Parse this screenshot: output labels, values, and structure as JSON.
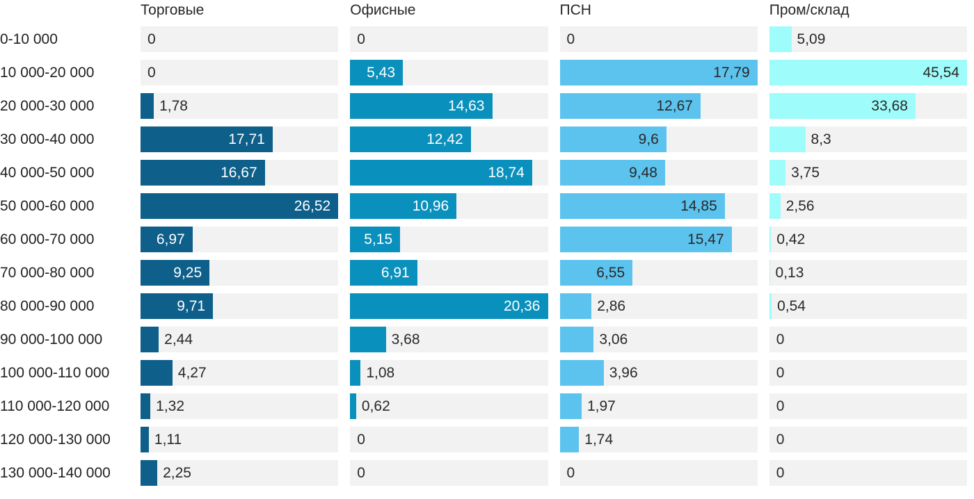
{
  "chart_data": {
    "type": "bar",
    "orientation": "horizontal",
    "title": "",
    "grid": "off",
    "legend_position": "column-headers-top",
    "track_color": "#f2f2f2",
    "background_color": "#ffffff",
    "text_color": "#282828",
    "categories": [
      "0-10 000",
      "10 000-20 000",
      "20 000-30 000",
      "30 000-40 000",
      "40 000-50 000",
      "50 000-60 000",
      "60 000-70 000",
      "70 000-80 000",
      "80 000-90 000",
      "90 000-100 000",
      "100 000-110 000",
      "110 000-120 000",
      "120 000-130 000",
      "130 000-140 000"
    ],
    "scaling_note": "each column scaled independently so its max value fills the track",
    "series": [
      {
        "name": "Торговые",
        "color": "#0e5f8a",
        "text_on_bar": "#ffffff",
        "values": [
          0,
          0,
          1.78,
          17.71,
          16.67,
          26.52,
          6.97,
          9.25,
          9.71,
          2.44,
          4.27,
          1.32,
          1.11,
          2.25
        ],
        "labels": [
          "0",
          "0",
          "1,78",
          "17,71",
          "16,67",
          "26,52",
          "6,97",
          "9,25",
          "9,71",
          "2,44",
          "4,27",
          "1,32",
          "1,11",
          "2,25"
        ]
      },
      {
        "name": "Офисные",
        "color": "#0a90bc",
        "text_on_bar": "#ffffff",
        "values": [
          0,
          5.43,
          14.63,
          12.42,
          18.74,
          10.96,
          5.15,
          6.91,
          20.36,
          3.68,
          1.08,
          0.62,
          0,
          0
        ],
        "labels": [
          "0",
          "5,43",
          "14,63",
          "12,42",
          "18,74",
          "10,96",
          "5,15",
          "6,91",
          "20,36",
          "3,68",
          "1,08",
          "0,62",
          "0",
          "0"
        ]
      },
      {
        "name": "ПСН",
        "color": "#5cc3ee",
        "text_on_bar": "#282828",
        "values": [
          0,
          17.79,
          12.67,
          9.6,
          9.48,
          14.85,
          15.47,
          6.55,
          2.86,
          3.06,
          3.96,
          1.97,
          1.74,
          0
        ],
        "labels": [
          "0",
          "17,79",
          "12,67",
          "9,6",
          "9,48",
          "14,85",
          "15,47",
          "6,55",
          "2,86",
          "3,06",
          "3,96",
          "1,97",
          "1,74",
          "0"
        ]
      },
      {
        "name": "Пром/склад",
        "color": "#9efcfa",
        "text_on_bar": "#282828",
        "values": [
          5.09,
          45.54,
          33.68,
          8.3,
          3.75,
          2.56,
          0.42,
          0.13,
          0.54,
          0,
          0,
          0,
          0,
          0
        ],
        "labels": [
          "5,09",
          "45,54",
          "33,68",
          "8,3",
          "3,75",
          "2,56",
          "0,42",
          "0,13",
          "0,54",
          "0",
          "0",
          "0",
          "0",
          "0"
        ]
      }
    ]
  }
}
